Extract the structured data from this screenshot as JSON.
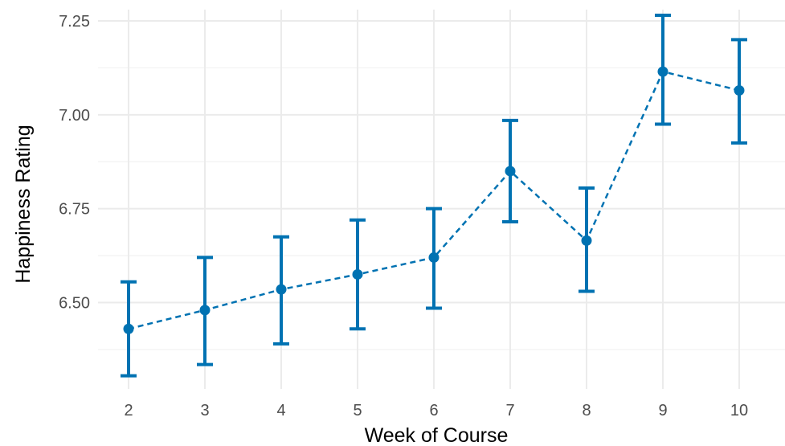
{
  "chart_data": {
    "type": "line",
    "xlabel": "Week of Course",
    "ylabel": "Happiness Rating",
    "x": [
      2,
      3,
      4,
      5,
      6,
      7,
      8,
      9,
      10
    ],
    "xticks": [
      "2",
      "3",
      "4",
      "5",
      "6",
      "7",
      "8",
      "9",
      "10"
    ],
    "yticks": [
      "6.50",
      "6.75",
      "7.00",
      "7.25"
    ],
    "ylim": [
      6.27,
      7.28
    ],
    "xlim": [
      1.6,
      10.6
    ],
    "grid": true,
    "line_style": "dashed",
    "series": [
      {
        "color": "#0072b2",
        "values": [
          6.43,
          6.48,
          6.535,
          6.575,
          6.62,
          6.85,
          6.665,
          7.115,
          7.065
        ],
        "error_lower": [
          6.305,
          6.335,
          6.39,
          6.43,
          6.485,
          6.715,
          6.53,
          6.975,
          6.925
        ],
        "error_upper": [
          6.555,
          6.62,
          6.675,
          6.72,
          6.75,
          6.985,
          6.805,
          7.265,
          7.2
        ]
      }
    ]
  }
}
